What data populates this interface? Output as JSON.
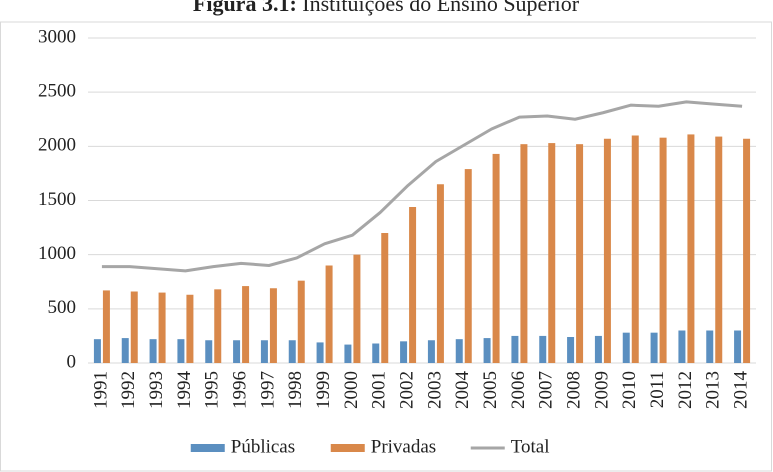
{
  "chart_data": {
    "type": "bar",
    "figure_label": "Figura 3.1:",
    "title": "Instituições do Ensino Superior",
    "categories": [
      "1991",
      "1992",
      "1993",
      "1994",
      "1995",
      "1996",
      "1997",
      "1998",
      "1999",
      "2000",
      "2001",
      "2002",
      "2003",
      "2004",
      "2005",
      "2006",
      "2007",
      "2008",
      "2009",
      "2010",
      "2011",
      "2012",
      "2013",
      "2014"
    ],
    "series": [
      {
        "name": "Públicas",
        "type": "bar",
        "color": "#5b8fc0",
        "values": [
          220,
          230,
          220,
          220,
          210,
          210,
          210,
          210,
          190,
          170,
          180,
          200,
          210,
          220,
          230,
          250,
          250,
          240,
          250,
          280,
          280,
          300,
          300,
          300
        ]
      },
      {
        "name": "Privadas",
        "type": "bar",
        "color": "#d9884a",
        "values": [
          670,
          660,
          650,
          630,
          680,
          710,
          690,
          760,
          900,
          1000,
          1200,
          1440,
          1650,
          1790,
          1930,
          2020,
          2030,
          2020,
          2070,
          2100,
          2080,
          2110,
          2090,
          2070
        ]
      },
      {
        "name": "Total",
        "type": "line",
        "color": "#a6a6a6",
        "values": [
          890,
          890,
          870,
          850,
          890,
          920,
          900,
          970,
          1100,
          1180,
          1390,
          1640,
          1860,
          2010,
          2160,
          2270,
          2280,
          2250,
          2310,
          2380,
          2370,
          2410,
          2390,
          2370
        ]
      }
    ],
    "ylim": [
      0,
      3000
    ],
    "yticks": [
      0,
      500,
      1000,
      1500,
      2000,
      2500,
      3000
    ],
    "grid": true,
    "legend": "bottom"
  }
}
